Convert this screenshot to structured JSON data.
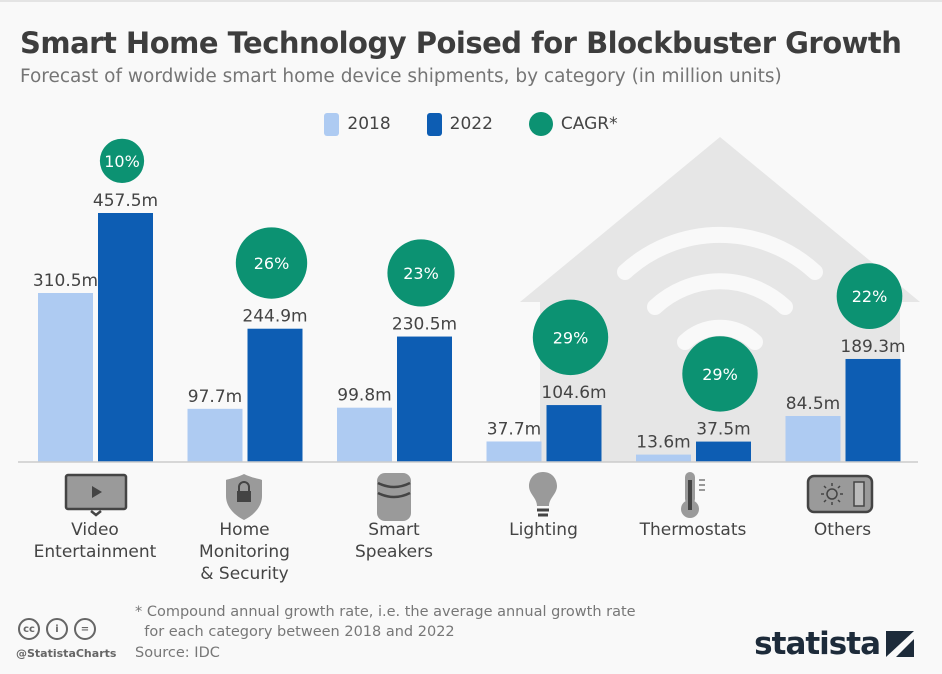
{
  "chart_data": {
    "type": "bar",
    "title": "Smart Home Technology Poised for Blockbuster Growth",
    "subtitle": "Forecast of wordwide smart home device shipments, by category (in million units)",
    "categories": [
      "Video\nEntertainment",
      "Home\nMonitoring\n& Security",
      "Smart\nSpeakers",
      "Lighting",
      "Thermostats",
      "Others"
    ],
    "category_icons": [
      "tv-icon",
      "shield-lock-icon",
      "smart-speaker-icon",
      "lightbulb-icon",
      "thermometer-icon",
      "control-panel-icon"
    ],
    "series": [
      {
        "name": "2018",
        "color": "#aecbf2",
        "values": [
          310.5,
          97.7,
          99.8,
          37.7,
          13.6,
          84.5
        ],
        "labels": [
          "310.5m",
          "97.7m",
          "99.8m",
          "37.7m",
          "13.6m",
          "84.5m"
        ]
      },
      {
        "name": "2022",
        "color": "#0d5db3",
        "values": [
          457.5,
          244.9,
          230.5,
          104.6,
          37.5,
          189.3
        ],
        "labels": [
          "457.5m",
          "244.9m",
          "230.5m",
          "104.6m",
          "37.5m",
          "189.3m"
        ]
      }
    ],
    "cagr": {
      "name": "CAGR*",
      "color": "#0c9272",
      "values": [
        10,
        26,
        23,
        29,
        29,
        22
      ],
      "labels": [
        "10%",
        "26%",
        "23%",
        "29%",
        "29%",
        "22%"
      ]
    },
    "ylim": [
      0,
      470
    ],
    "grid": false,
    "legend_position": "top-center"
  },
  "footer": {
    "note": "* Compound annual growth rate, i.e. the average annual growth rate\n  for each category between 2018 and 2022",
    "source": "Source: IDC",
    "handle": "@StatistaCharts",
    "brand": "statista"
  }
}
